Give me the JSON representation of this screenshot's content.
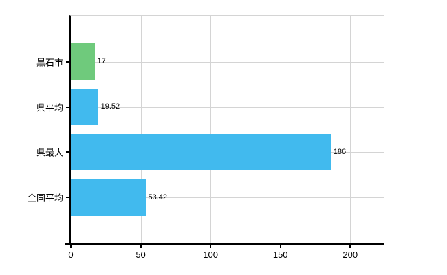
{
  "chart_data": {
    "type": "bar",
    "orientation": "horizontal",
    "title": "",
    "xlabel": "",
    "ylabel": "",
    "categories": [
      "黒石市",
      "県平均",
      "県最大",
      "全国平均"
    ],
    "values": [
      17,
      19.52,
      186,
      53.42
    ],
    "value_labels": [
      "17",
      "19.52",
      "186",
      "53.42"
    ],
    "bar_colors": [
      "#6fca7c",
      "#41baee",
      "#41baee",
      "#41baee"
    ],
    "xticks": [
      0,
      50,
      100,
      150,
      200
    ],
    "xtick_labels": [
      "0",
      "50",
      "100",
      "150",
      "200"
    ],
    "xlim": [
      0,
      224
    ],
    "grid": true,
    "legend": false,
    "colors": {
      "green_bar": "#6fca7c",
      "blue_bar": "#41baee",
      "gridline": "#d4d4d4",
      "axis": "#000000",
      "text": "#000000",
      "background": "#ffffff"
    }
  }
}
